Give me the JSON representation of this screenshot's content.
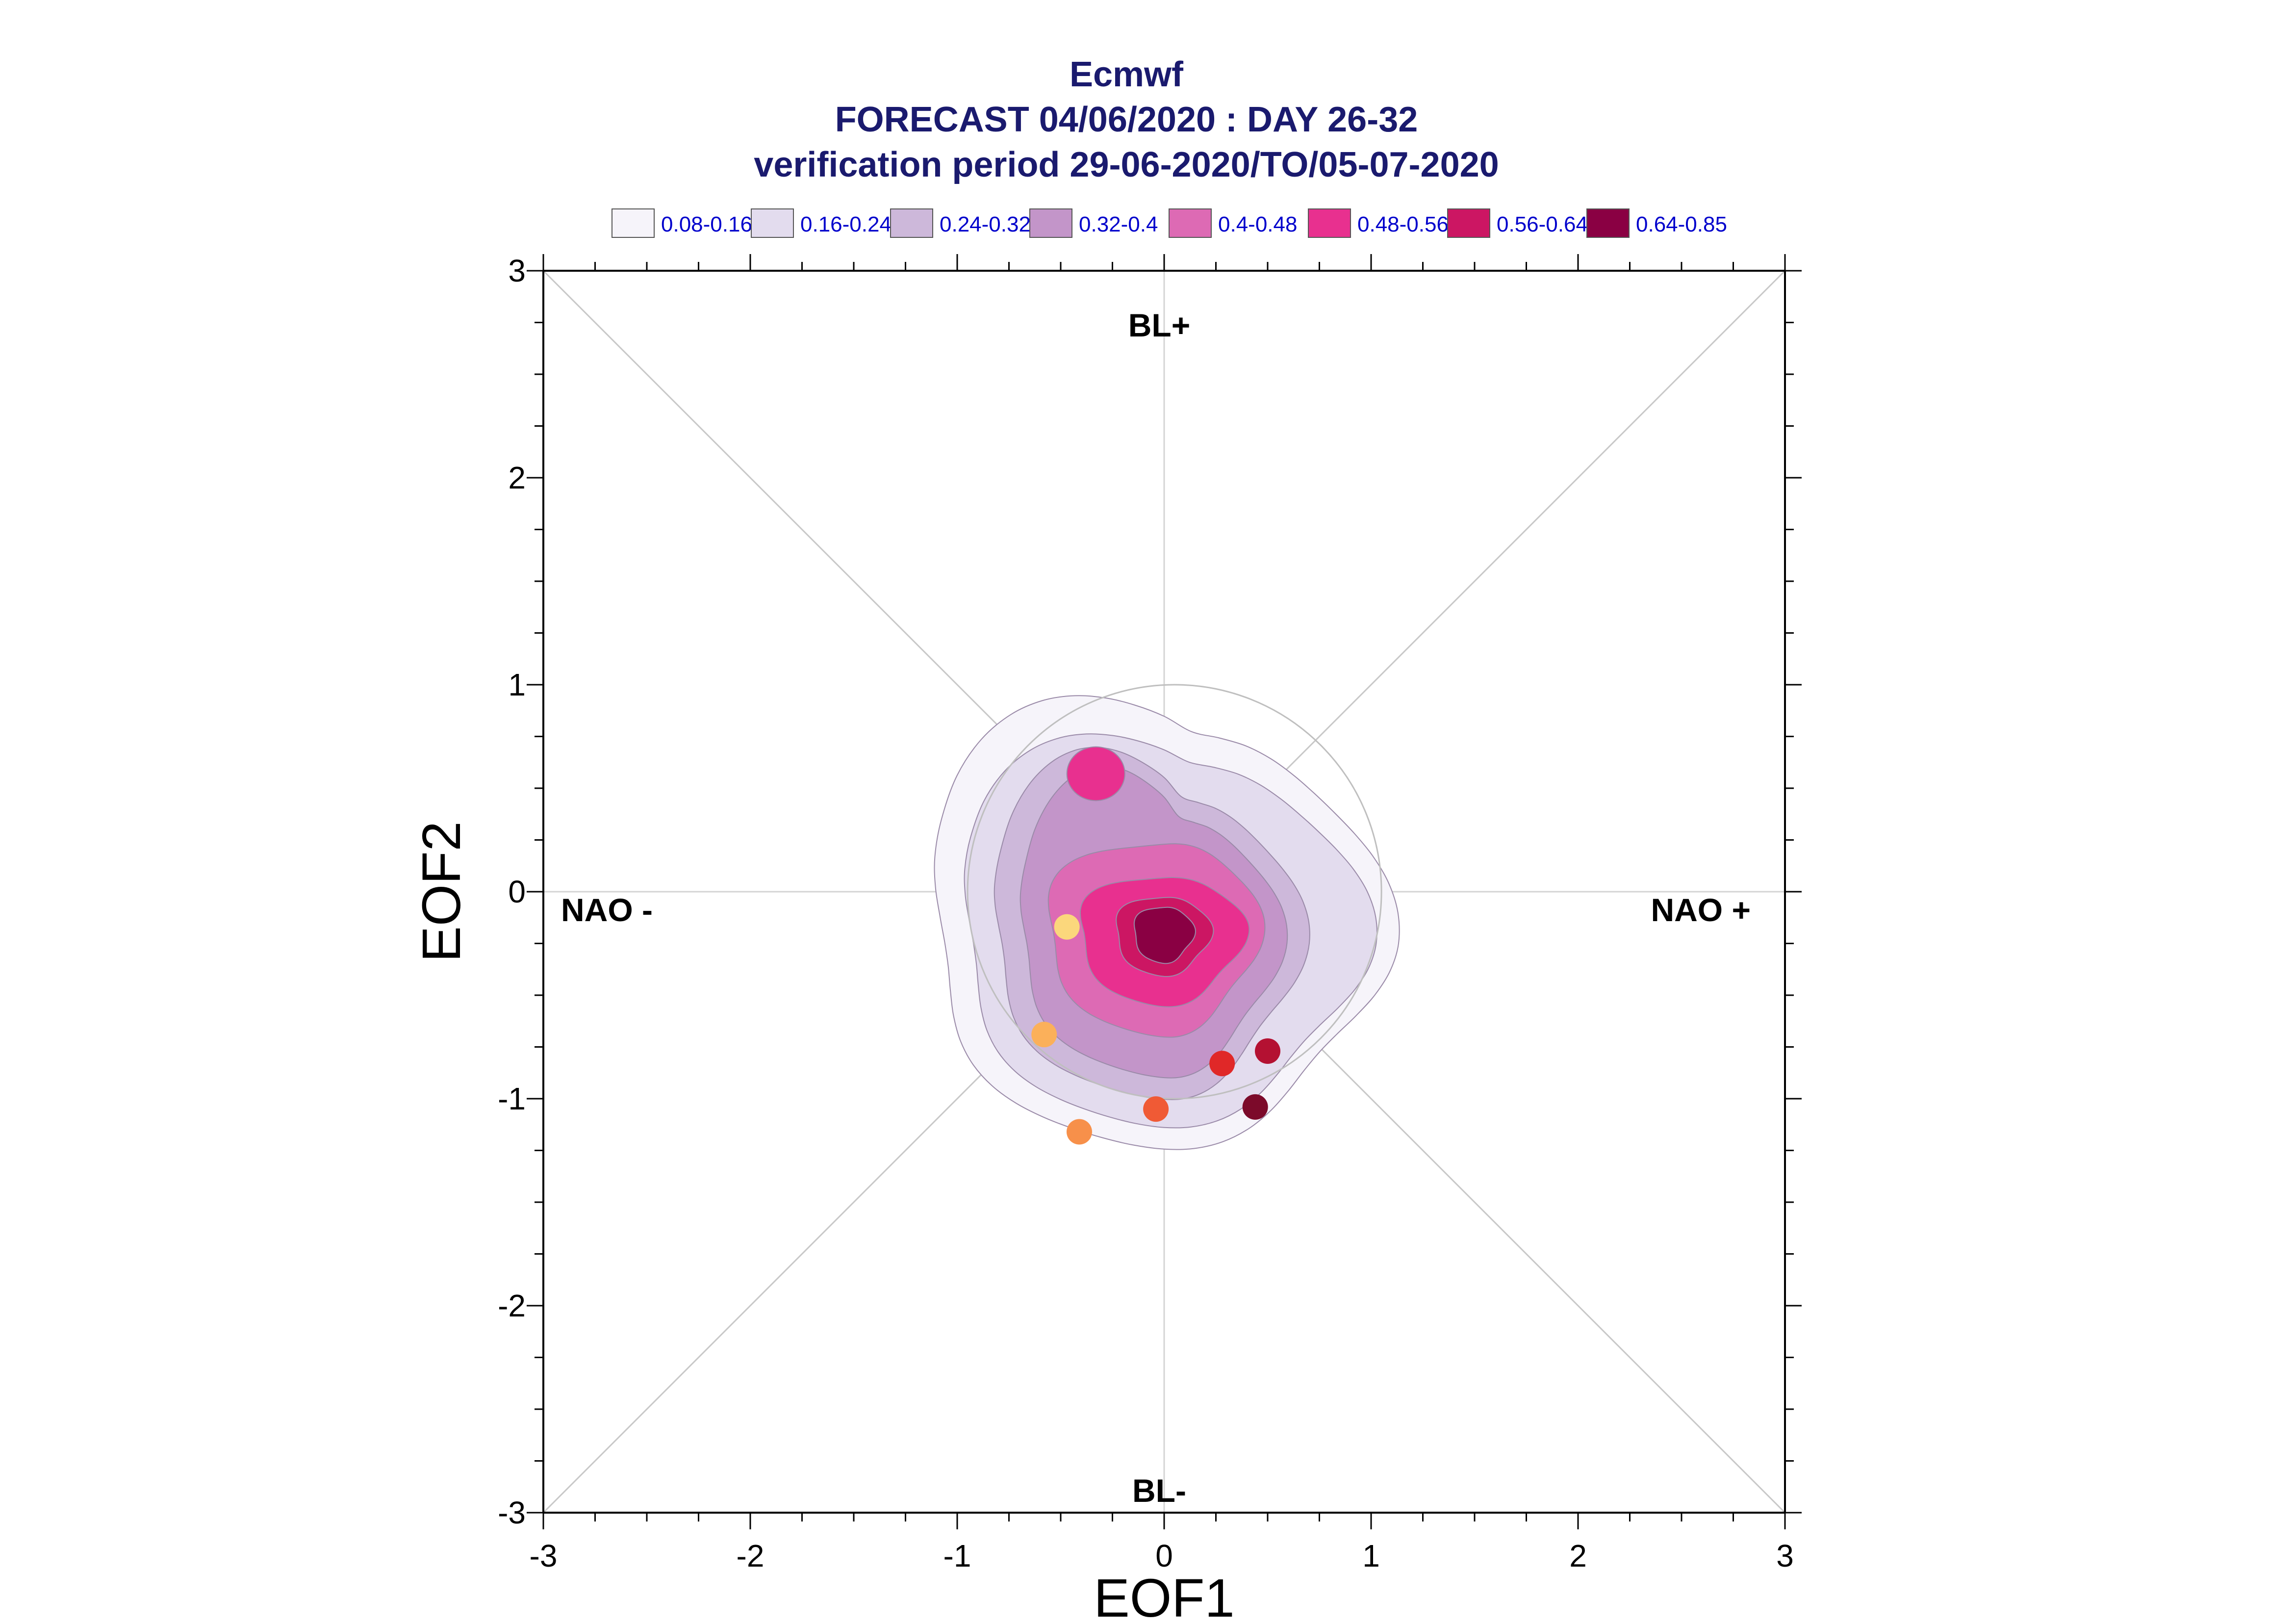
{
  "chart_data": {
    "type": "scatter",
    "title_lines": [
      "Ecmwf",
      "FORECAST 04/06/2020 : DAY 26-32",
      "verification period 29-06-2020/TO/05-07-2020"
    ],
    "xlabel": "EOF1",
    "ylabel": "EOF2",
    "xlim": [
      -3,
      3
    ],
    "ylim": [
      -3,
      3
    ],
    "xticks": [
      "-3",
      "-2",
      "-1",
      "0",
      "1",
      "2",
      "3"
    ],
    "yticks": [
      "-3",
      "-2",
      "-1",
      "0",
      "1",
      "2",
      "3"
    ],
    "regions": {
      "top": "BL+",
      "bottom": "BL-",
      "left": "NAO -",
      "right": "NAO +"
    },
    "legend": [
      {
        "label": "0.08-0.16",
        "color": "#f6f4fa"
      },
      {
        "label": "0.16-0.24",
        "color": "#e3dcee"
      },
      {
        "label": "0.24-0.32",
        "color": "#cdb8da"
      },
      {
        "label": "0.32-0.4",
        "color": "#c395c9"
      },
      {
        "label": "0.4-0.48",
        "color": "#dd6ab4"
      },
      {
        "label": "0.48-0.56",
        "color": "#e8308f"
      },
      {
        "label": "0.56-0.64",
        "color": "#cc1663"
      },
      {
        "label": "0.64-0.85",
        "color": "#8a0043"
      }
    ],
    "density_center": [
      0.05,
      -0.1
    ],
    "points": [
      {
        "x": -0.47,
        "y": -0.17,
        "color": "#fbd77c"
      },
      {
        "x": -0.58,
        "y": -0.69,
        "color": "#fbb05a"
      },
      {
        "x": -0.41,
        "y": -1.16,
        "color": "#f7904a"
      },
      {
        "x": -0.04,
        "y": -1.05,
        "color": "#f05a35"
      },
      {
        "x": 0.28,
        "y": -0.83,
        "color": "#e02828"
      },
      {
        "x": 0.5,
        "y": -0.77,
        "color": "#b41132"
      },
      {
        "x": 0.44,
        "y": -1.04,
        "color": "#7c0a2a"
      }
    ]
  }
}
